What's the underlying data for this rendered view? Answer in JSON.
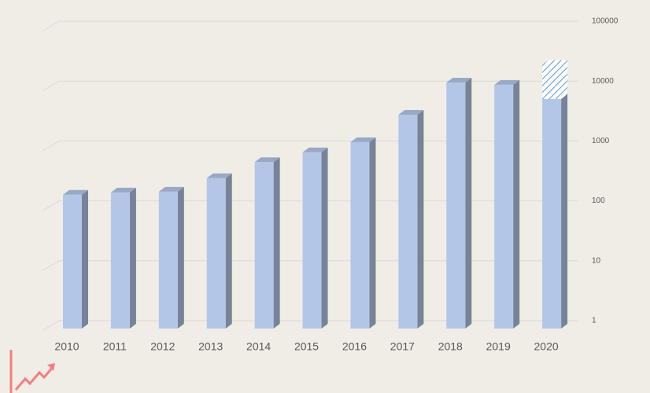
{
  "chart_data": {
    "type": "bar3d",
    "categories": [
      "2010",
      "2011",
      "2012",
      "2013",
      "2014",
      "2015",
      "2016",
      "2017",
      "2018",
      "2019",
      "2020"
    ],
    "series": [
      {
        "color": "#b4c6e7",
        "values": [
          142,
          155,
          160,
          270,
          500,
          730,
          1080,
          3100,
          10700,
          9800,
          6800
        ]
      },
      {
        "color": "#5b9bd5",
        "pattern": "hatch",
        "values": [
          null,
          null,
          null,
          null,
          null,
          null,
          null,
          null,
          null,
          null,
          14200
        ]
      }
    ],
    "log_scale": true,
    "ylim": [
      1,
      100000
    ],
    "yticks": [
      1,
      10,
      100,
      1000,
      10000,
      100000
    ],
    "grid": true,
    "y_axis_side": "right"
  }
}
